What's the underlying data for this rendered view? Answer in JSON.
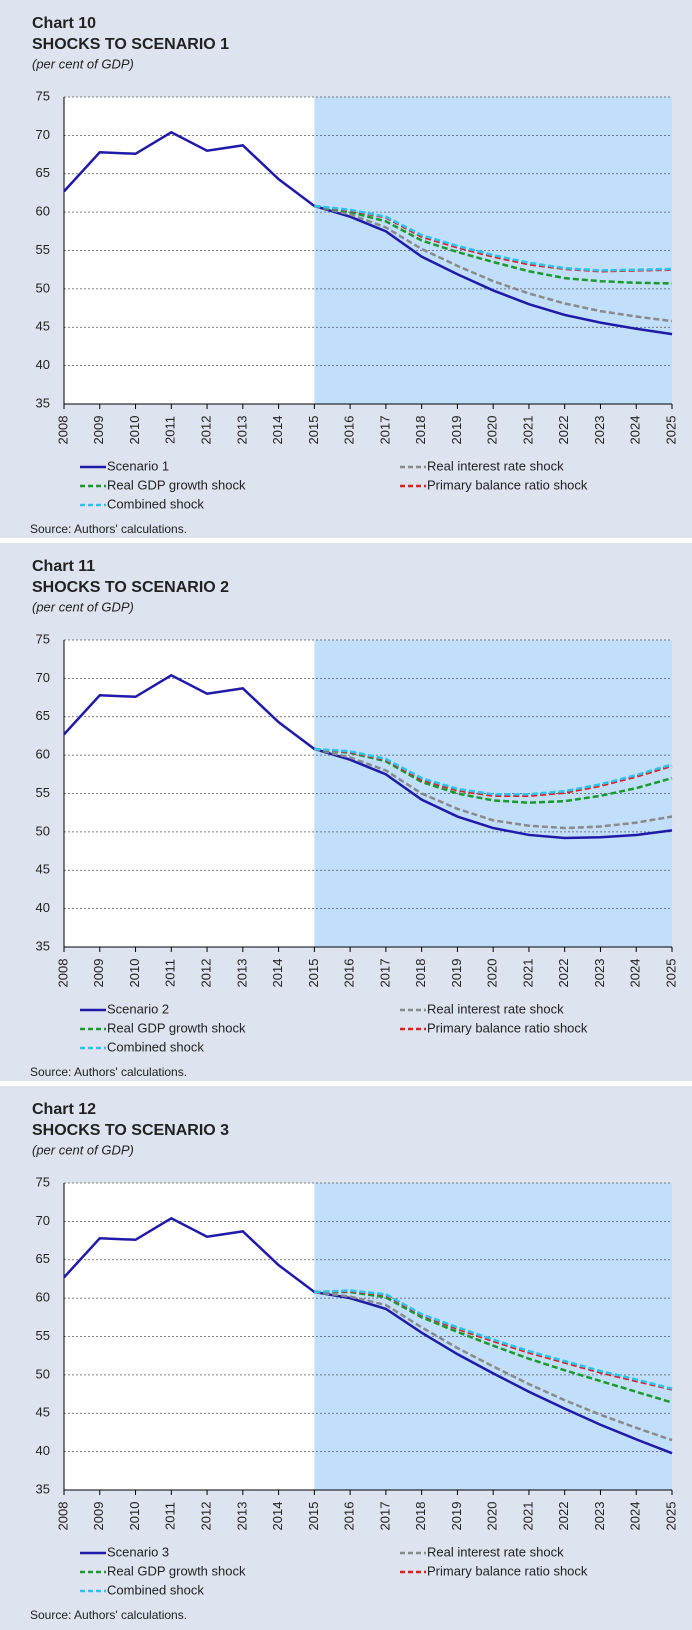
{
  "chart_data": [
    {
      "type": "line",
      "label": "Chart 10",
      "title": "SHOCKS TO SCENARIO 1",
      "subtitle": "(per cent of GDP)",
      "source": "Source: Authors' calculations.",
      "categories": [
        "2008",
        "2009",
        "2010",
        "2011",
        "2012",
        "2013",
        "2014",
        "2015",
        "2016",
        "2017",
        "2018",
        "2019",
        "2020",
        "2021",
        "2022",
        "2023",
        "2024",
        "2025"
      ],
      "ylim": [
        35,
        75
      ],
      "yticks": [
        35,
        40,
        45,
        50,
        55,
        60,
        65,
        70,
        75
      ],
      "grid": true,
      "series": [
        {
          "name": "Scenario 1",
          "color": "#1f1aa8",
          "dash": false,
          "values": [
            62.7,
            67.8,
            67.6,
            70.4,
            68.0,
            68.7,
            64.3,
            60.8,
            59.4,
            57.5,
            54.2,
            51.9,
            49.8,
            48.0,
            46.6,
            45.6,
            44.8,
            44.1
          ]
        },
        {
          "name": "Real interest rate shock",
          "color": "#8a8a8a",
          "dash": true,
          "values": [
            null,
            null,
            null,
            null,
            null,
            null,
            null,
            60.8,
            59.7,
            58.0,
            55.2,
            53.0,
            51.0,
            49.4,
            48.1,
            47.1,
            46.4,
            45.8
          ]
        },
        {
          "name": "Real GDP growth shock",
          "color": "#1a9a2a",
          "dash": true,
          "values": [
            null,
            null,
            null,
            null,
            null,
            null,
            null,
            60.8,
            60.0,
            58.8,
            56.3,
            54.8,
            53.5,
            52.3,
            51.4,
            51.0,
            50.8,
            50.7
          ]
        },
        {
          "name": "Primary balance ratio shock",
          "color": "#e02020",
          "dash": true,
          "values": [
            null,
            null,
            null,
            null,
            null,
            null,
            null,
            60.8,
            60.2,
            59.3,
            56.8,
            55.4,
            54.2,
            53.2,
            52.6,
            52.3,
            52.4,
            52.5
          ]
        },
        {
          "name": "Combined shock",
          "color": "#29c5f0",
          "dash": true,
          "values": [
            null,
            null,
            null,
            null,
            null,
            null,
            null,
            60.8,
            60.3,
            59.4,
            57.0,
            55.6,
            54.4,
            53.4,
            52.7,
            52.4,
            52.5,
            52.6
          ]
        }
      ]
    },
    {
      "type": "line",
      "label": "Chart 11",
      "title": "SHOCKS TO SCENARIO 2",
      "subtitle": "(per cent of GDP)",
      "source": "Source: Authors' calculations.",
      "categories": [
        "2008",
        "2009",
        "2010",
        "2011",
        "2012",
        "2013",
        "2014",
        "2015",
        "2016",
        "2017",
        "2018",
        "2019",
        "2020",
        "2021",
        "2022",
        "2023",
        "2024",
        "2025"
      ],
      "ylim": [
        35,
        75
      ],
      "yticks": [
        35,
        40,
        45,
        50,
        55,
        60,
        65,
        70,
        75
      ],
      "grid": true,
      "series": [
        {
          "name": "Scenario 2",
          "color": "#1f1aa8",
          "dash": false,
          "values": [
            62.7,
            67.8,
            67.6,
            70.4,
            68.0,
            68.7,
            64.3,
            60.8,
            59.4,
            57.5,
            54.2,
            52.0,
            50.5,
            49.6,
            49.2,
            49.3,
            49.6,
            50.2
          ]
        },
        {
          "name": "Real interest rate shock",
          "color": "#8a8a8a",
          "dash": true,
          "values": [
            null,
            null,
            null,
            null,
            null,
            null,
            null,
            60.8,
            59.7,
            58.0,
            55.0,
            53.0,
            51.5,
            50.8,
            50.5,
            50.7,
            51.2,
            52.0
          ]
        },
        {
          "name": "Real GDP growth shock",
          "color": "#1a9a2a",
          "dash": true,
          "values": [
            null,
            null,
            null,
            null,
            null,
            null,
            null,
            60.8,
            60.3,
            59.2,
            56.5,
            55.0,
            54.1,
            53.8,
            54.0,
            54.7,
            55.7,
            57.0
          ]
        },
        {
          "name": "Primary balance ratio shock",
          "color": "#e02020",
          "dash": true,
          "values": [
            null,
            null,
            null,
            null,
            null,
            null,
            null,
            60.8,
            60.4,
            59.4,
            56.8,
            55.4,
            54.7,
            54.7,
            55.1,
            56.0,
            57.2,
            58.6
          ]
        },
        {
          "name": "Combined shock",
          "color": "#29c5f0",
          "dash": true,
          "values": [
            null,
            null,
            null,
            null,
            null,
            null,
            null,
            60.8,
            60.5,
            59.5,
            57.0,
            55.6,
            54.9,
            54.9,
            55.3,
            56.2,
            57.4,
            58.8
          ]
        }
      ]
    },
    {
      "type": "line",
      "label": "Chart 12",
      "title": "SHOCKS TO SCENARIO 3",
      "subtitle": "(per cent of GDP)",
      "source": "Source: Authors' calculations.",
      "categories": [
        "2008",
        "2009",
        "2010",
        "2011",
        "2012",
        "2013",
        "2014",
        "2015",
        "2016",
        "2017",
        "2018",
        "2019",
        "2020",
        "2021",
        "2022",
        "2023",
        "2024",
        "2025"
      ],
      "ylim": [
        35,
        75
      ],
      "yticks": [
        35,
        40,
        45,
        50,
        55,
        60,
        65,
        70,
        75
      ],
      "grid": true,
      "series": [
        {
          "name": "Scenario 3",
          "color": "#1f1aa8",
          "dash": false,
          "values": [
            62.7,
            67.8,
            67.6,
            70.4,
            68.0,
            68.7,
            64.3,
            60.8,
            60.0,
            58.6,
            55.5,
            52.7,
            50.2,
            47.8,
            45.6,
            43.5,
            41.6,
            39.8
          ]
        },
        {
          "name": "Real interest rate shock",
          "color": "#8a8a8a",
          "dash": true,
          "values": [
            null,
            null,
            null,
            null,
            null,
            null,
            null,
            60.8,
            60.2,
            59.1,
            56.2,
            53.5,
            51.1,
            48.8,
            46.7,
            44.8,
            43.1,
            41.5
          ]
        },
        {
          "name": "Real GDP growth shock",
          "color": "#1a9a2a",
          "dash": true,
          "values": [
            null,
            null,
            null,
            null,
            null,
            null,
            null,
            60.8,
            60.8,
            60.1,
            57.5,
            55.6,
            53.8,
            52.1,
            50.6,
            49.2,
            47.8,
            46.4
          ]
        },
        {
          "name": "Primary balance ratio shock",
          "color": "#e02020",
          "dash": true,
          "values": [
            null,
            null,
            null,
            null,
            null,
            null,
            null,
            60.8,
            60.9,
            60.4,
            57.8,
            56.0,
            54.4,
            52.9,
            51.6,
            50.3,
            49.2,
            48.1
          ]
        },
        {
          "name": "Combined shock",
          "color": "#29c5f0",
          "dash": true,
          "values": [
            null,
            null,
            null,
            null,
            null,
            null,
            null,
            60.8,
            61.0,
            60.5,
            57.9,
            56.2,
            54.6,
            53.1,
            51.8,
            50.5,
            49.4,
            48.2
          ]
        }
      ]
    }
  ]
}
